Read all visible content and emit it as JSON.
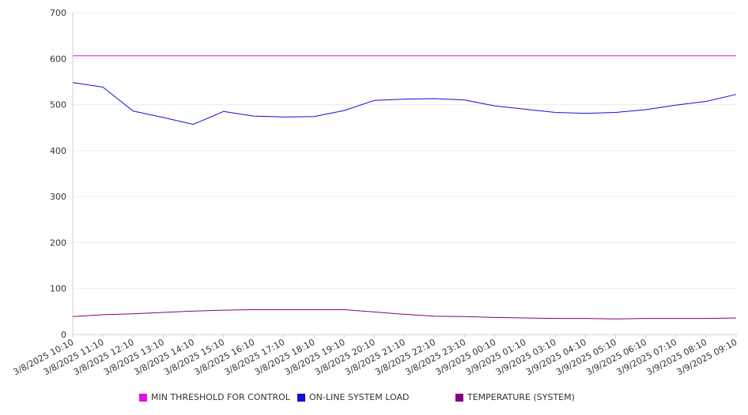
{
  "chart_data": {
    "type": "line",
    "title": "",
    "xlabel": "",
    "ylabel": "",
    "ylim": [
      0,
      700
    ],
    "yticks": [
      "0",
      "100",
      "200",
      "300",
      "400",
      "500",
      "600",
      "700"
    ],
    "xticks": [
      "3/8/2025 10:10",
      "3/8/2025 11:10",
      "3/8/2025 12:10",
      "3/8/2025 13:10",
      "3/8/2025 14:10",
      "3/8/2025 15:10",
      "3/8/2025 16:10",
      "3/8/2025 17:10",
      "3/8/2025 18:10",
      "3/8/2025 19:10",
      "3/8/2025 20:10",
      "3/8/2025 21:10",
      "3/8/2025 22:10",
      "3/8/2025 23:10",
      "3/9/2025 00:10",
      "3/9/2025 01:10",
      "3/9/2025 03:10",
      "3/9/2025 04:10",
      "3/9/2025 05:10",
      "3/9/2025 06:10",
      "3/9/2025 07:10",
      "3/9/2025 08:10",
      "3/9/2025 09:10"
    ],
    "grid": true,
    "legend_position": "bottom",
    "series": [
      {
        "name": "MIN THRESHOLD FOR CONTROL",
        "color": "#e010e0",
        "values": [
          606,
          606,
          606,
          606,
          606,
          606,
          606,
          606,
          606,
          606,
          606,
          606,
          606,
          606,
          606,
          606,
          606,
          606,
          606,
          606,
          606,
          606,
          606
        ]
      },
      {
        "name": "ON-LINE SYSTEM LOAD",
        "color": "#0a12d8",
        "values": [
          548,
          538,
          486,
          472,
          457,
          485,
          475,
          473,
          474,
          487,
          509,
          512,
          513,
          510,
          497,
          490,
          483,
          481,
          483,
          489,
          499,
          507,
          522
        ]
      },
      {
        "name": "TEMPERATURE (SYSTEM)",
        "color": "#800080",
        "values": [
          39,
          43,
          45,
          48,
          51,
          53,
          54,
          54,
          54,
          54,
          49,
          44,
          40,
          39,
          37,
          36,
          35,
          35,
          34,
          35,
          35,
          35,
          36
        ]
      }
    ]
  }
}
